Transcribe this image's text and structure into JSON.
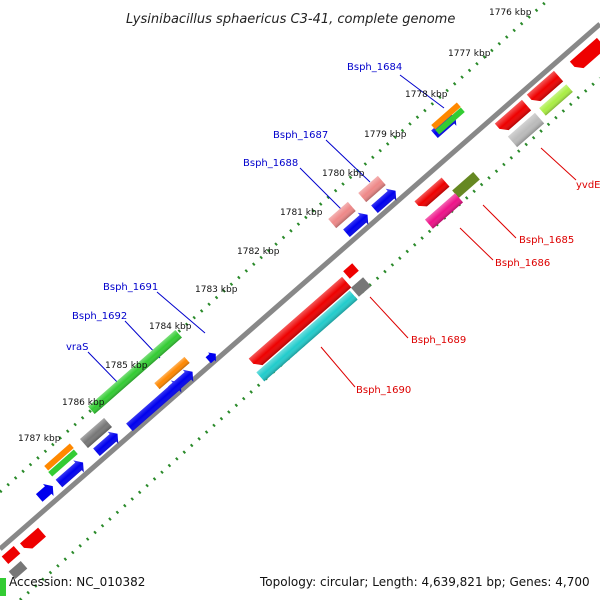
{
  "title": "Lysinibacillus sphaericus C3-41, complete genome",
  "footer": {
    "accession": "Accession: NC_010382",
    "summary": "Topology: circular; Length: 4,639,821 bp; Genes: 4,700"
  },
  "kbp_ticks": [
    {
      "label": "1776 kbp"
    },
    {
      "label": "1777 kbp"
    },
    {
      "label": "1778 kbp"
    },
    {
      "label": "1779 kbp"
    },
    {
      "label": "1780 kbp"
    },
    {
      "label": "1781 kbp"
    },
    {
      "label": "1782 kbp"
    },
    {
      "label": "1783 kbp"
    },
    {
      "label": "1784 kbp"
    },
    {
      "label": "1785 kbp"
    },
    {
      "label": "1786 kbp"
    },
    {
      "label": "1787 kbp"
    }
  ],
  "gene_labels_outer": [
    {
      "text": "Bsph_1684",
      "color": "#0000cc"
    },
    {
      "text": "Bsph_1687",
      "color": "#0000cc"
    },
    {
      "text": "Bsph_1688",
      "color": "#0000cc"
    },
    {
      "text": "Bsph_1691",
      "color": "#0000cc"
    },
    {
      "text": "Bsph_1692",
      "color": "#0000cc"
    },
    {
      "text": "vraS",
      "color": "#0000cc"
    }
  ],
  "gene_labels_inner": [
    {
      "text": "yvdE",
      "color": "#dd0000"
    },
    {
      "text": "Bsph_1685",
      "color": "#dd0000"
    },
    {
      "text": "Bsph_1686",
      "color": "#dd0000"
    },
    {
      "text": "Bsph_1689",
      "color": "#dd0000"
    },
    {
      "text": "Bsph_1690",
      "color": "#dd0000"
    }
  ],
  "colors": {
    "backbone": "#888888",
    "tick_dots": "#2a8a2a",
    "outer_label": "#0000cc",
    "inner_label": "#dd0000",
    "blue": "#0000ee",
    "red": "#ee0000",
    "green": "#33cc33",
    "orange": "#ff8800",
    "pink": "#ee8888",
    "gray": "#777777",
    "cyan": "#22cccc",
    "olive": "#668822",
    "magenta": "#ee1188",
    "lightgray": "#bbbbbb",
    "lime": "#aaee44"
  }
}
